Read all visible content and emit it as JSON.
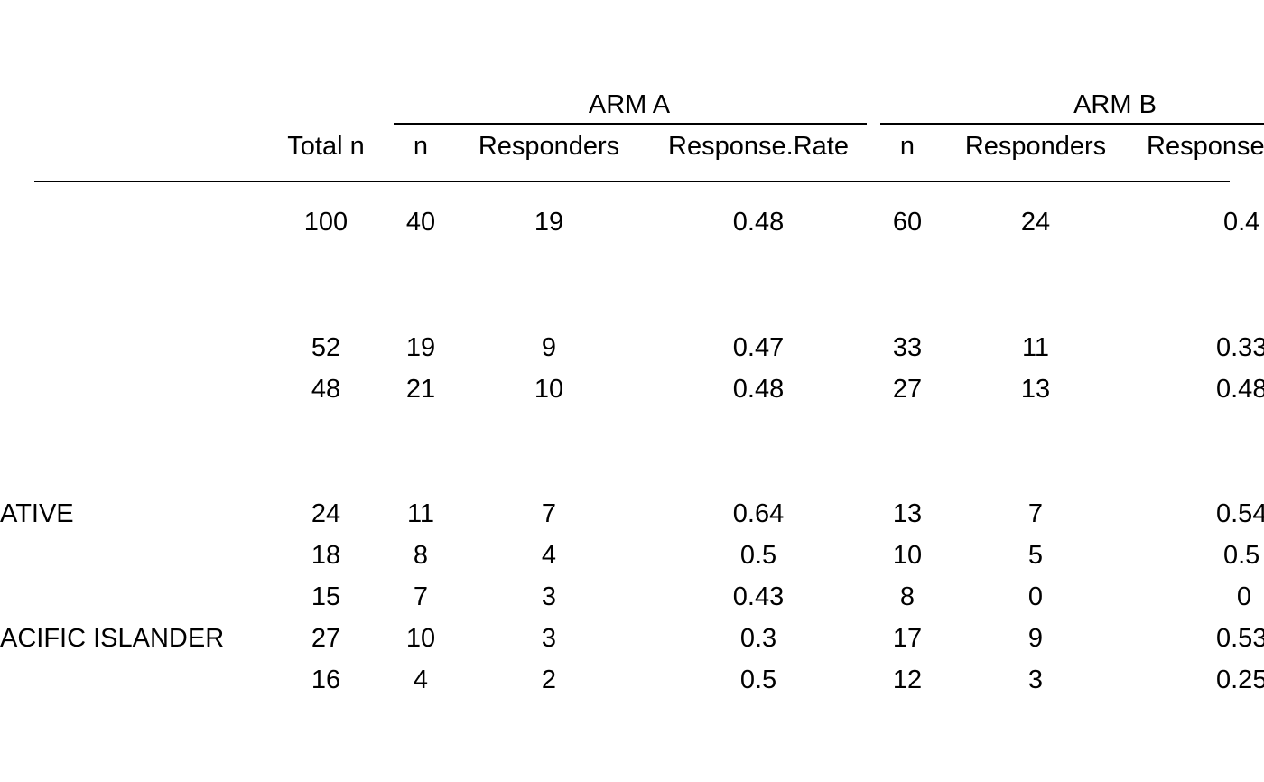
{
  "table": {
    "arms": [
      {
        "label": "ARM A"
      },
      {
        "label": "ARM B"
      }
    ],
    "columns": {
      "total_n": "Total n",
      "arm_a": [
        "n",
        "Responders",
        "Response.Rate"
      ],
      "arm_b": [
        "n",
        "Responders",
        "Response.Rate"
      ]
    },
    "rows": [
      {
        "label": "",
        "total": "100",
        "a": [
          "40",
          "19",
          "0.48"
        ],
        "b": [
          "60",
          "24",
          "0.4"
        ]
      },
      {
        "label": "",
        "total": "52",
        "a": [
          "19",
          "9",
          "0.47"
        ],
        "b": [
          "33",
          "11",
          "0.33"
        ]
      },
      {
        "label": "",
        "total": "48",
        "a": [
          "21",
          "10",
          "0.48"
        ],
        "b": [
          "27",
          "13",
          "0.48"
        ]
      },
      {
        "label": "ATIVE",
        "total": "24",
        "a": [
          "11",
          "7",
          "0.64"
        ],
        "b": [
          "13",
          "7",
          "0.54"
        ]
      },
      {
        "label": "",
        "total": "18",
        "a": [
          "8",
          "4",
          "0.5"
        ],
        "b": [
          "10",
          "5",
          "0.5"
        ]
      },
      {
        "label": "",
        "total": "15",
        "a": [
          "7",
          "3",
          "0.43"
        ],
        "b": [
          "8",
          "0",
          "0"
        ]
      },
      {
        "label": "ACIFIC ISLANDER",
        "total": "27",
        "a": [
          "10",
          "3",
          "0.3"
        ],
        "b": [
          "17",
          "9",
          "0.53"
        ]
      },
      {
        "label": "",
        "total": "16",
        "a": [
          "4",
          "2",
          "0.5"
        ],
        "b": [
          "12",
          "3",
          "0.25"
        ]
      }
    ]
  }
}
